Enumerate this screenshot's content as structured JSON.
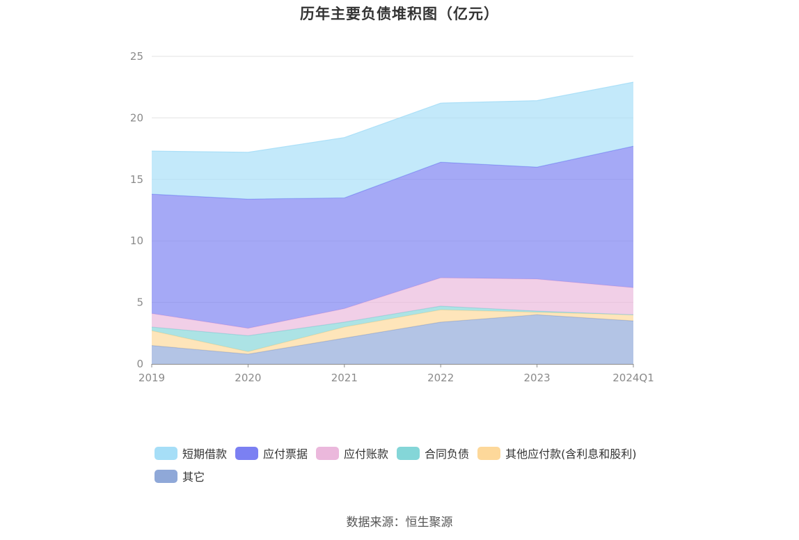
{
  "title": "历年主要负债堆积图（亿元）",
  "source": "数据来源：恒生聚源",
  "chart_data": {
    "type": "area",
    "stacked": true,
    "title": "历年主要负债堆积图（亿元）",
    "xlabel": "",
    "ylabel": "",
    "categories": [
      "2019",
      "2020",
      "2021",
      "2022",
      "2023",
      "2024Q1"
    ],
    "ylim": [
      0,
      25
    ],
    "yticks": [
      0,
      5,
      10,
      15,
      20,
      25
    ],
    "grid": true,
    "legend_position": "bottom",
    "series": [
      {
        "name": "其它",
        "color": "#8fa8d8",
        "values": [
          1.5,
          0.8,
          2.1,
          3.4,
          4.0,
          3.5
        ]
      },
      {
        "name": "其他应付款(含利息和股利)",
        "color": "#fdd89a",
        "values": [
          1.2,
          0.2,
          0.9,
          1.0,
          0.2,
          0.5
        ]
      },
      {
        "name": "合同负债",
        "color": "#84d6d8",
        "values": [
          0.3,
          1.3,
          0.4,
          0.3,
          0.1,
          0.0
        ]
      },
      {
        "name": "应付账款",
        "color": "#ebb8dc",
        "values": [
          1.1,
          0.6,
          1.1,
          2.3,
          2.6,
          2.2
        ]
      },
      {
        "name": "应付票据",
        "color": "#7b80f2",
        "values": [
          9.7,
          10.5,
          9.0,
          9.4,
          9.1,
          11.5
        ]
      },
      {
        "name": "短期借款",
        "color": "#a6def7",
        "values": [
          3.5,
          3.8,
          4.9,
          4.8,
          5.4,
          5.2
        ]
      }
    ]
  },
  "legend": [
    {
      "label": "短期借款",
      "color": "#a6def7"
    },
    {
      "label": "应付票据",
      "color": "#7b80f2"
    },
    {
      "label": "应付账款",
      "color": "#ebb8dc"
    },
    {
      "label": "合同负债",
      "color": "#84d6d8"
    },
    {
      "label": "其他应付款(含利息和股利)",
      "color": "#fdd89a"
    },
    {
      "label": "其它",
      "color": "#8fa8d8"
    }
  ]
}
